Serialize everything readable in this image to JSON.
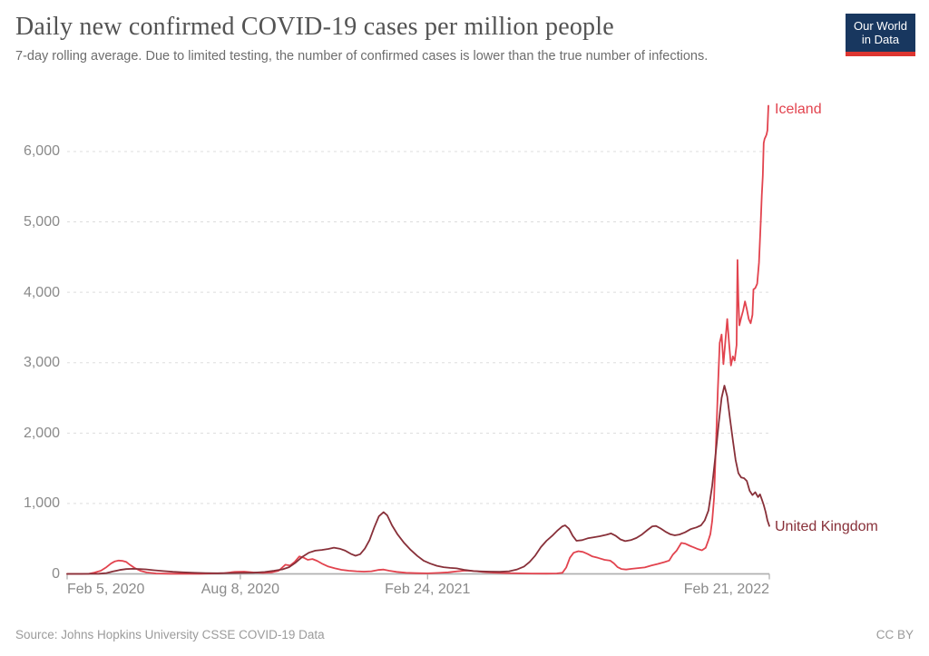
{
  "header": {
    "title": "Daily new confirmed COVID-19 cases per million people",
    "subtitle": "7-day rolling average. Due to limited testing, the number of confirmed cases is lower than the true number of infections.",
    "logo": {
      "line1": "Our World",
      "line2": "in Data"
    }
  },
  "footer": {
    "source": "Source: Johns Hopkins University CSSE COVID-19 Data",
    "license": "CC BY"
  },
  "colors": {
    "iceland": "#e2434e",
    "united_kingdom": "#883039",
    "gridline": "#dddddd",
    "axis_line": "#b0b0b0",
    "tick_text": "#8a8a8a",
    "logo_bg": "#18375f",
    "logo_bar": "#dd3530"
  },
  "chart_data": {
    "type": "line",
    "title": "Daily new confirmed COVID-19 cases per million people",
    "subtitle": "7-day rolling average. Due to limited testing, the number of confirmed cases is lower than the true number of infections.",
    "legend_position": "end-of-line-labels",
    "grid": "dashed-horizontal",
    "x_axis": {
      "start_date": "2020-02-05",
      "end_date": "2022-02-24",
      "ticks": [
        {
          "date": "2020-02-05",
          "label": "Feb 5, 2020",
          "align": "left"
        },
        {
          "date": "2020-08-08",
          "label": "Aug 8, 2020",
          "align": "center"
        },
        {
          "date": "2021-02-24",
          "label": "Feb 24, 2021",
          "align": "center"
        },
        {
          "date": "2022-02-21",
          "label": "Feb 21, 2022",
          "align": "right"
        }
      ]
    },
    "y_axis": {
      "min": 0,
      "max": 6760,
      "gridline_values": [
        1000,
        2000,
        3000,
        4000,
        5000,
        6000
      ],
      "ticks": [
        {
          "value": 0,
          "label": "0"
        },
        {
          "value": 1000,
          "label": "1,000"
        },
        {
          "value": 2000,
          "label": "2,000"
        },
        {
          "value": 3000,
          "label": "3,000"
        },
        {
          "value": 4000,
          "label": "4,000"
        },
        {
          "value": 5000,
          "label": "5,000"
        },
        {
          "value": 6000,
          "label": "6,000"
        }
      ]
    },
    "series": [
      {
        "name": "Iceland",
        "color": "#e2434e",
        "points": [
          [
            "2020-02-05",
            0
          ],
          [
            "2020-02-28",
            1
          ],
          [
            "2020-03-05",
            18
          ],
          [
            "2020-03-12",
            45
          ],
          [
            "2020-03-18",
            95
          ],
          [
            "2020-03-23",
            150
          ],
          [
            "2020-03-27",
            178
          ],
          [
            "2020-03-31",
            190
          ],
          [
            "2020-04-04",
            186
          ],
          [
            "2020-04-08",
            172
          ],
          [
            "2020-04-12",
            130
          ],
          [
            "2020-04-17",
            85
          ],
          [
            "2020-04-23",
            45
          ],
          [
            "2020-04-30",
            20
          ],
          [
            "2020-05-10",
            7
          ],
          [
            "2020-05-25",
            3
          ],
          [
            "2020-06-10",
            2
          ],
          [
            "2020-06-25",
            3
          ],
          [
            "2020-07-10",
            6
          ],
          [
            "2020-07-22",
            12
          ],
          [
            "2020-08-02",
            28
          ],
          [
            "2020-08-12",
            32
          ],
          [
            "2020-08-22",
            20
          ],
          [
            "2020-09-01",
            14
          ],
          [
            "2020-09-10",
            20
          ],
          [
            "2020-09-18",
            45
          ],
          [
            "2020-09-25",
            130
          ],
          [
            "2020-09-30",
            118
          ],
          [
            "2020-10-05",
            170
          ],
          [
            "2020-10-10",
            248
          ],
          [
            "2020-10-15",
            228
          ],
          [
            "2020-10-19",
            200
          ],
          [
            "2020-10-24",
            212
          ],
          [
            "2020-10-29",
            185
          ],
          [
            "2020-11-04",
            140
          ],
          [
            "2020-11-10",
            105
          ],
          [
            "2020-11-17",
            78
          ],
          [
            "2020-11-24",
            58
          ],
          [
            "2020-12-02",
            45
          ],
          [
            "2020-12-10",
            38
          ],
          [
            "2020-12-18",
            32
          ],
          [
            "2020-12-26",
            38
          ],
          [
            "2021-01-02",
            55
          ],
          [
            "2021-01-08",
            62
          ],
          [
            "2021-01-14",
            45
          ],
          [
            "2021-01-22",
            28
          ],
          [
            "2021-02-01",
            16
          ],
          [
            "2021-02-12",
            10
          ],
          [
            "2021-02-24",
            8
          ],
          [
            "2021-03-08",
            14
          ],
          [
            "2021-03-18",
            22
          ],
          [
            "2021-03-28",
            38
          ],
          [
            "2021-04-06",
            48
          ],
          [
            "2021-04-15",
            40
          ],
          [
            "2021-04-24",
            28
          ],
          [
            "2021-05-05",
            18
          ],
          [
            "2021-05-18",
            12
          ],
          [
            "2021-06-01",
            8
          ],
          [
            "2021-06-15",
            5
          ],
          [
            "2021-07-01",
            4
          ],
          [
            "2021-07-12",
            6
          ],
          [
            "2021-07-18",
            15
          ],
          [
            "2021-07-22",
            90
          ],
          [
            "2021-07-26",
            230
          ],
          [
            "2021-07-30",
            300
          ],
          [
            "2021-08-04",
            322
          ],
          [
            "2021-08-09",
            312
          ],
          [
            "2021-08-14",
            282
          ],
          [
            "2021-08-19",
            248
          ],
          [
            "2021-08-25",
            228
          ],
          [
            "2021-09-01",
            200
          ],
          [
            "2021-09-07",
            188
          ],
          [
            "2021-09-11",
            150
          ],
          [
            "2021-09-15",
            95
          ],
          [
            "2021-09-19",
            70
          ],
          [
            "2021-09-24",
            62
          ],
          [
            "2021-09-30",
            72
          ],
          [
            "2021-10-07",
            82
          ],
          [
            "2021-10-14",
            92
          ],
          [
            "2021-10-21",
            118
          ],
          [
            "2021-10-28",
            142
          ],
          [
            "2021-11-04",
            168
          ],
          [
            "2021-11-09",
            190
          ],
          [
            "2021-11-13",
            275
          ],
          [
            "2021-11-17",
            330
          ],
          [
            "2021-11-22",
            440
          ],
          [
            "2021-11-26",
            430
          ],
          [
            "2021-12-01",
            400
          ],
          [
            "2021-12-06",
            372
          ],
          [
            "2021-12-10",
            350
          ],
          [
            "2021-12-14",
            335
          ],
          [
            "2021-12-18",
            370
          ],
          [
            "2021-12-21",
            480
          ],
          [
            "2021-12-23",
            565
          ],
          [
            "2021-12-25",
            750
          ],
          [
            "2021-12-27",
            1080
          ],
          [
            "2021-12-29",
            1850
          ],
          [
            "2021-12-31",
            2600
          ],
          [
            "2022-01-02",
            3280
          ],
          [
            "2022-01-04",
            3400
          ],
          [
            "2022-01-06",
            2980
          ],
          [
            "2022-01-08",
            3300
          ],
          [
            "2022-01-10",
            3620
          ],
          [
            "2022-01-12",
            3280
          ],
          [
            "2022-01-14",
            2960
          ],
          [
            "2022-01-16",
            3090
          ],
          [
            "2022-01-18",
            3030
          ],
          [
            "2022-01-20",
            3250
          ],
          [
            "2022-01-21",
            4460
          ],
          [
            "2022-01-22",
            3900
          ],
          [
            "2022-01-23",
            3530
          ],
          [
            "2022-01-25",
            3640
          ],
          [
            "2022-01-27",
            3740
          ],
          [
            "2022-01-29",
            3870
          ],
          [
            "2022-01-31",
            3760
          ],
          [
            "2022-02-02",
            3620
          ],
          [
            "2022-02-04",
            3560
          ],
          [
            "2022-02-06",
            3680
          ],
          [
            "2022-02-07",
            4040
          ],
          [
            "2022-02-09",
            4060
          ],
          [
            "2022-02-11",
            4120
          ],
          [
            "2022-02-13",
            4420
          ],
          [
            "2022-02-15",
            5050
          ],
          [
            "2022-02-16",
            5380
          ],
          [
            "2022-02-17",
            5650
          ],
          [
            "2022-02-18",
            6120
          ],
          [
            "2022-02-19",
            6180
          ],
          [
            "2022-02-20",
            6210
          ],
          [
            "2022-02-21",
            6240
          ],
          [
            "2022-02-22",
            6300
          ],
          [
            "2022-02-23",
            6650
          ]
        ]
      },
      {
        "name": "United Kingdom",
        "color": "#883039",
        "points": [
          [
            "2020-02-05",
            0
          ],
          [
            "2020-02-20",
            0
          ],
          [
            "2020-03-01",
            1
          ],
          [
            "2020-03-10",
            3
          ],
          [
            "2020-03-18",
            12
          ],
          [
            "2020-03-25",
            35
          ],
          [
            "2020-04-01",
            55
          ],
          [
            "2020-04-08",
            68
          ],
          [
            "2020-04-15",
            72
          ],
          [
            "2020-04-22",
            70
          ],
          [
            "2020-04-29",
            65
          ],
          [
            "2020-05-08",
            52
          ],
          [
            "2020-05-18",
            40
          ],
          [
            "2020-05-28",
            30
          ],
          [
            "2020-06-08",
            22
          ],
          [
            "2020-06-20",
            16
          ],
          [
            "2020-07-02",
            11
          ],
          [
            "2020-07-15",
            9
          ],
          [
            "2020-07-28",
            11
          ],
          [
            "2020-08-10",
            14
          ],
          [
            "2020-08-22",
            17
          ],
          [
            "2020-09-03",
            27
          ],
          [
            "2020-09-13",
            45
          ],
          [
            "2020-09-22",
            65
          ],
          [
            "2020-09-29",
            95
          ],
          [
            "2020-10-06",
            160
          ],
          [
            "2020-10-13",
            240
          ],
          [
            "2020-10-20",
            300
          ],
          [
            "2020-10-27",
            330
          ],
          [
            "2020-11-03",
            340
          ],
          [
            "2020-11-10",
            355
          ],
          [
            "2020-11-16",
            372
          ],
          [
            "2020-11-22",
            358
          ],
          [
            "2020-11-28",
            330
          ],
          [
            "2020-12-04",
            285
          ],
          [
            "2020-12-09",
            258
          ],
          [
            "2020-12-14",
            280
          ],
          [
            "2020-12-19",
            360
          ],
          [
            "2020-12-24",
            480
          ],
          [
            "2020-12-29",
            660
          ],
          [
            "2021-01-03",
            820
          ],
          [
            "2021-01-08",
            878
          ],
          [
            "2021-01-12",
            830
          ],
          [
            "2021-01-17",
            690
          ],
          [
            "2021-01-23",
            560
          ],
          [
            "2021-01-30",
            440
          ],
          [
            "2021-02-06",
            340
          ],
          [
            "2021-02-13",
            255
          ],
          [
            "2021-02-20",
            185
          ],
          [
            "2021-02-27",
            145
          ],
          [
            "2021-03-06",
            115
          ],
          [
            "2021-03-13",
            95
          ],
          [
            "2021-03-20",
            85
          ],
          [
            "2021-03-27",
            78
          ],
          [
            "2021-04-05",
            55
          ],
          [
            "2021-04-14",
            40
          ],
          [
            "2021-04-23",
            35
          ],
          [
            "2021-05-02",
            32
          ],
          [
            "2021-05-12",
            30
          ],
          [
            "2021-05-22",
            38
          ],
          [
            "2021-05-30",
            60
          ],
          [
            "2021-06-07",
            105
          ],
          [
            "2021-06-13",
            170
          ],
          [
            "2021-06-19",
            260
          ],
          [
            "2021-06-25",
            380
          ],
          [
            "2021-07-01",
            470
          ],
          [
            "2021-07-07",
            540
          ],
          [
            "2021-07-13",
            620
          ],
          [
            "2021-07-18",
            675
          ],
          [
            "2021-07-21",
            690
          ],
          [
            "2021-07-25",
            640
          ],
          [
            "2021-07-29",
            540
          ],
          [
            "2021-08-02",
            470
          ],
          [
            "2021-08-08",
            480
          ],
          [
            "2021-08-14",
            505
          ],
          [
            "2021-08-20",
            520
          ],
          [
            "2021-08-27",
            535
          ],
          [
            "2021-09-03",
            555
          ],
          [
            "2021-09-08",
            575
          ],
          [
            "2021-09-13",
            540
          ],
          [
            "2021-09-18",
            490
          ],
          [
            "2021-09-23",
            465
          ],
          [
            "2021-09-29",
            480
          ],
          [
            "2021-10-05",
            510
          ],
          [
            "2021-10-11",
            560
          ],
          [
            "2021-10-17",
            625
          ],
          [
            "2021-10-22",
            675
          ],
          [
            "2021-10-26",
            680
          ],
          [
            "2021-10-31",
            645
          ],
          [
            "2021-11-05",
            600
          ],
          [
            "2021-11-10",
            565
          ],
          [
            "2021-11-15",
            548
          ],
          [
            "2021-11-20",
            560
          ],
          [
            "2021-11-26",
            590
          ],
          [
            "2021-12-02",
            635
          ],
          [
            "2021-12-08",
            660
          ],
          [
            "2021-12-13",
            690
          ],
          [
            "2021-12-17",
            760
          ],
          [
            "2021-12-21",
            900
          ],
          [
            "2021-12-25",
            1250
          ],
          [
            "2021-12-29",
            1750
          ],
          [
            "2022-01-01",
            2150
          ],
          [
            "2022-01-04",
            2500
          ],
          [
            "2022-01-07",
            2675
          ],
          [
            "2022-01-10",
            2520
          ],
          [
            "2022-01-13",
            2200
          ],
          [
            "2022-01-16",
            1900
          ],
          [
            "2022-01-19",
            1620
          ],
          [
            "2022-01-22",
            1430
          ],
          [
            "2022-01-25",
            1370
          ],
          [
            "2022-01-28",
            1360
          ],
          [
            "2022-01-31",
            1320
          ],
          [
            "2022-02-03",
            1180
          ],
          [
            "2022-02-06",
            1120
          ],
          [
            "2022-02-09",
            1160
          ],
          [
            "2022-02-12",
            1090
          ],
          [
            "2022-02-14",
            1130
          ],
          [
            "2022-02-16",
            1060
          ],
          [
            "2022-02-18",
            980
          ],
          [
            "2022-02-20",
            880
          ],
          [
            "2022-02-22",
            760
          ],
          [
            "2022-02-24",
            680
          ]
        ]
      }
    ]
  }
}
